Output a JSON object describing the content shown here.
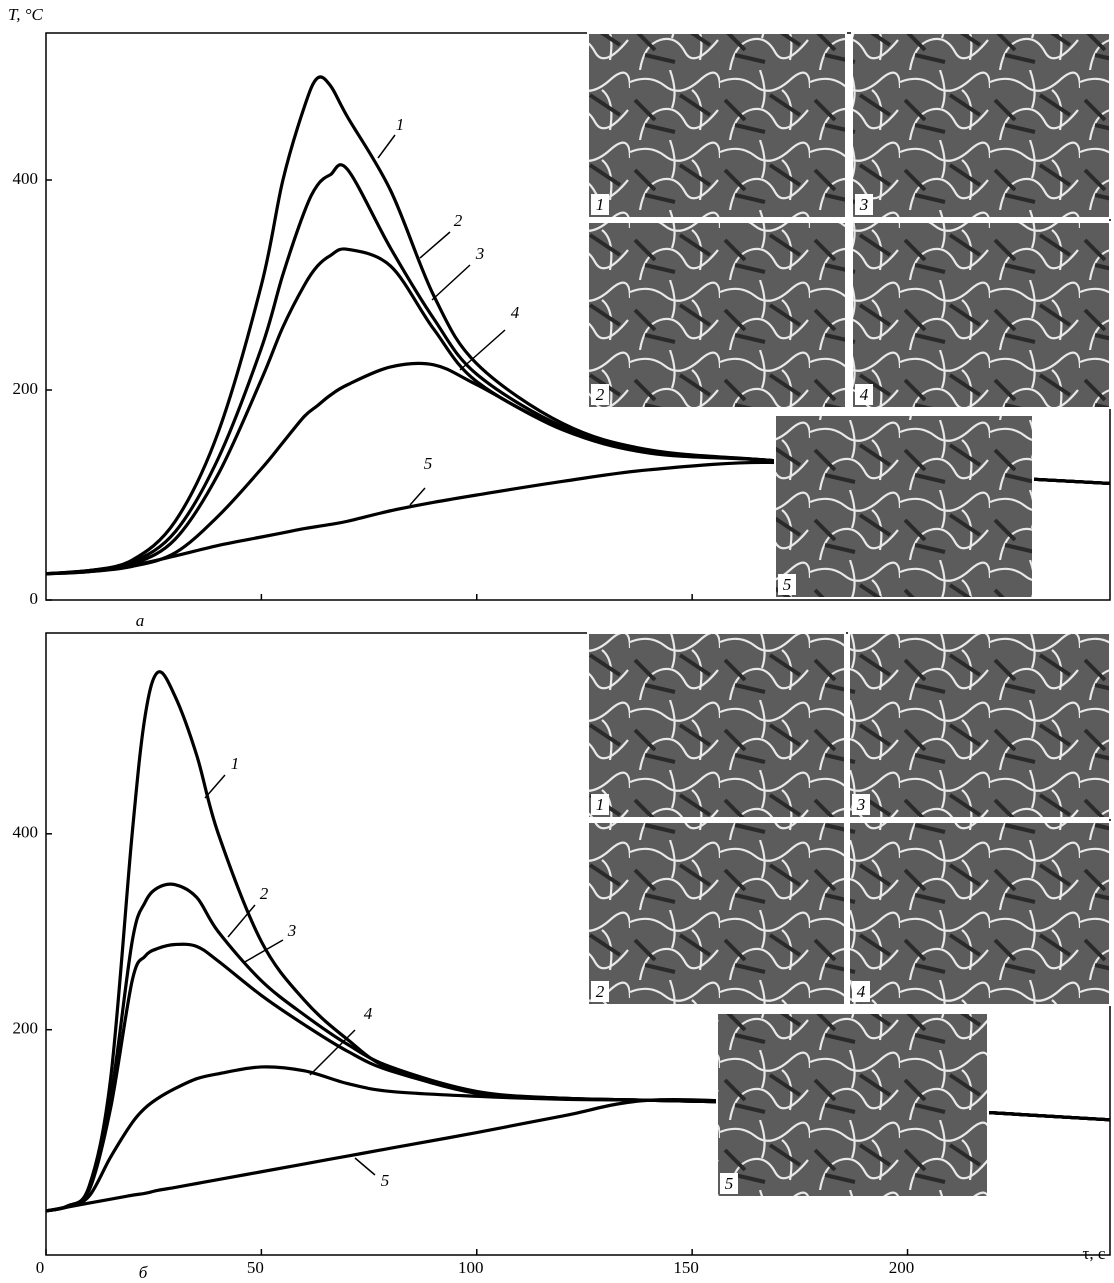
{
  "chart_data": [
    {
      "type": "line",
      "panel_label": "а",
      "ylabel": "T, °C",
      "x": [
        0,
        10,
        20,
        30,
        40,
        50,
        55,
        60,
        63,
        66,
        70,
        80,
        90,
        100,
        120,
        140,
        168,
        200,
        247
      ],
      "series": [
        {
          "name": "1",
          "color": "#000000",
          "values": [
            25,
            28,
            38,
            75,
            160,
            300,
            400,
            470,
            497,
            490,
            460,
            390,
            290,
            225,
            168,
            143,
            133,
            122,
            111
          ]
        },
        {
          "name": "2",
          "color": "#000000",
          "values": [
            25,
            28,
            36,
            65,
            135,
            240,
            310,
            370,
            395,
            405,
            410,
            335,
            268,
            215,
            165,
            142,
            133,
            122,
            111
          ]
        },
        {
          "name": "3",
          "color": "#000000",
          "values": [
            25,
            27,
            34,
            58,
            120,
            210,
            260,
            300,
            318,
            328,
            334,
            318,
            258,
            208,
            163,
            141,
            133,
            122,
            111
          ]
        },
        {
          "name": "4",
          "color": "#000000",
          "values": [
            25,
            27,
            32,
            45,
            80,
            125,
            150,
            175,
            185,
            195,
            205,
            222,
            224,
            205,
            162,
            140,
            133,
            122,
            111
          ]
        },
        {
          "name": "5",
          "color": "#000000",
          "values": [
            25,
            28,
            33,
            42,
            52,
            60,
            64,
            68,
            70,
            72,
            75,
            85,
            93,
            100,
            113,
            124,
            131,
            122,
            111
          ]
        }
      ],
      "xlim": [
        0,
        247
      ],
      "ylim": [
        0,
        540
      ],
      "xticks": [
        50,
        100,
        150
      ],
      "yticks": [
        0,
        200,
        400
      ],
      "show_xtick_labels": false,
      "insets": [
        {
          "label": "1"
        },
        {
          "label": "3"
        },
        {
          "label": "2"
        },
        {
          "label": "4"
        },
        {
          "label": "5"
        }
      ]
    },
    {
      "type": "line",
      "panel_label": "б",
      "xlabel": "τ, c",
      "x": [
        0,
        5,
        10,
        15,
        20,
        23,
        26,
        30,
        35,
        40,
        50,
        60,
        70,
        80,
        100,
        120,
        140,
        170,
        200,
        247
      ],
      "series": [
        {
          "name": "1",
          "color": "#000000",
          "values": [
            15,
            20,
            40,
            150,
            400,
            520,
            565,
            540,
            480,
            400,
            290,
            230,
            190,
            160,
            135,
            130,
            128,
            125,
            120,
            108
          ]
        },
        {
          "name": "2",
          "color": "#000000",
          "values": [
            15,
            20,
            38,
            130,
            290,
            330,
            345,
            348,
            335,
            300,
            250,
            215,
            185,
            162,
            137,
            130,
            128,
            125,
            120,
            108
          ]
        },
        {
          "name": "3",
          "color": "#000000",
          "values": [
            15,
            20,
            36,
            120,
            250,
            275,
            283,
            287,
            285,
            270,
            235,
            205,
            178,
            158,
            136,
            130,
            128,
            125,
            120,
            108
          ]
        },
        {
          "name": "4",
          "color": "#000000",
          "values": [
            15,
            19,
            30,
            70,
            105,
            120,
            130,
            140,
            150,
            155,
            162,
            158,
            145,
            137,
            132,
            129,
            128,
            125,
            120,
            108
          ]
        },
        {
          "name": "5",
          "color": "#000000",
          "values": [
            15,
            19,
            23,
            27,
            31,
            33,
            36,
            39,
            43,
            47,
            55,
            63,
            71,
            79,
            95,
            112,
            128,
            125,
            120,
            108
          ]
        }
      ],
      "xlim": [
        0,
        247
      ],
      "ylim": [
        -30,
        605
      ],
      "xticks": [
        0,
        50,
        100,
        150,
        200
      ],
      "yticks": [
        200,
        400
      ],
      "show_xtick_labels": true,
      "insets": [
        {
          "label": "1"
        },
        {
          "label": "3"
        },
        {
          "label": "2"
        },
        {
          "label": "4"
        },
        {
          "label": "5"
        }
      ]
    }
  ]
}
